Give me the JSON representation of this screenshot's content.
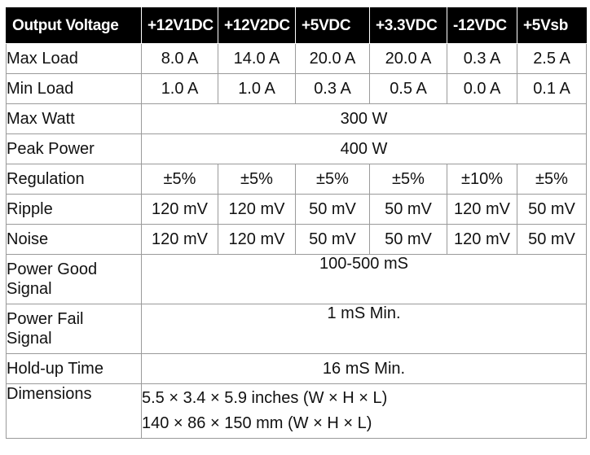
{
  "columns": [
    "Output Voltage",
    "+12V1DC",
    "+12V2DC",
    "+5VDC",
    "+3.3VDC",
    "-12VDC",
    "+5Vsb"
  ],
  "rows": {
    "max_load": {
      "label": "Max Load",
      "values": [
        "8.0 A",
        "14.0 A",
        "20.0 A",
        "20.0 A",
        "0.3 A",
        "2.5 A"
      ]
    },
    "min_load": {
      "label": "Min Load",
      "values": [
        "1.0 A",
        "1.0 A",
        "0.3 A",
        "0.5 A",
        "0.0 A",
        "0.1 A"
      ]
    },
    "max_watt": {
      "label": "Max Watt",
      "value": "300 W"
    },
    "peak_power": {
      "label": "Peak Power",
      "value": "400 W"
    },
    "regulation": {
      "label": "Regulation",
      "values": [
        "±5%",
        "±5%",
        "±5%",
        "±5%",
        "±10%",
        "±5%"
      ]
    },
    "ripple": {
      "label": "Ripple",
      "values": [
        "120 mV",
        "120 mV",
        "50 mV",
        "50 mV",
        "120 mV",
        "50 mV"
      ]
    },
    "noise": {
      "label": "Noise",
      "values": [
        "120 mV",
        "120 mV",
        "50 mV",
        "50 mV",
        "120 mV",
        "50 mV"
      ]
    },
    "power_good": {
      "label_line1": "Power Good",
      "label_line2": "Signal",
      "value": "100-500 mS"
    },
    "power_fail": {
      "label_line1": "Power Fail",
      "label_line2": "Signal",
      "value": "1 mS Min."
    },
    "hold_up": {
      "label": "Hold-up Time",
      "value": "16 mS Min."
    },
    "dimensions": {
      "label": "Dimensions",
      "line1": "5.5 × 3.4 × 5.9 inches (W × H × L)",
      "line2": "140 × 86 × 150 mm (W × H × L)"
    }
  }
}
